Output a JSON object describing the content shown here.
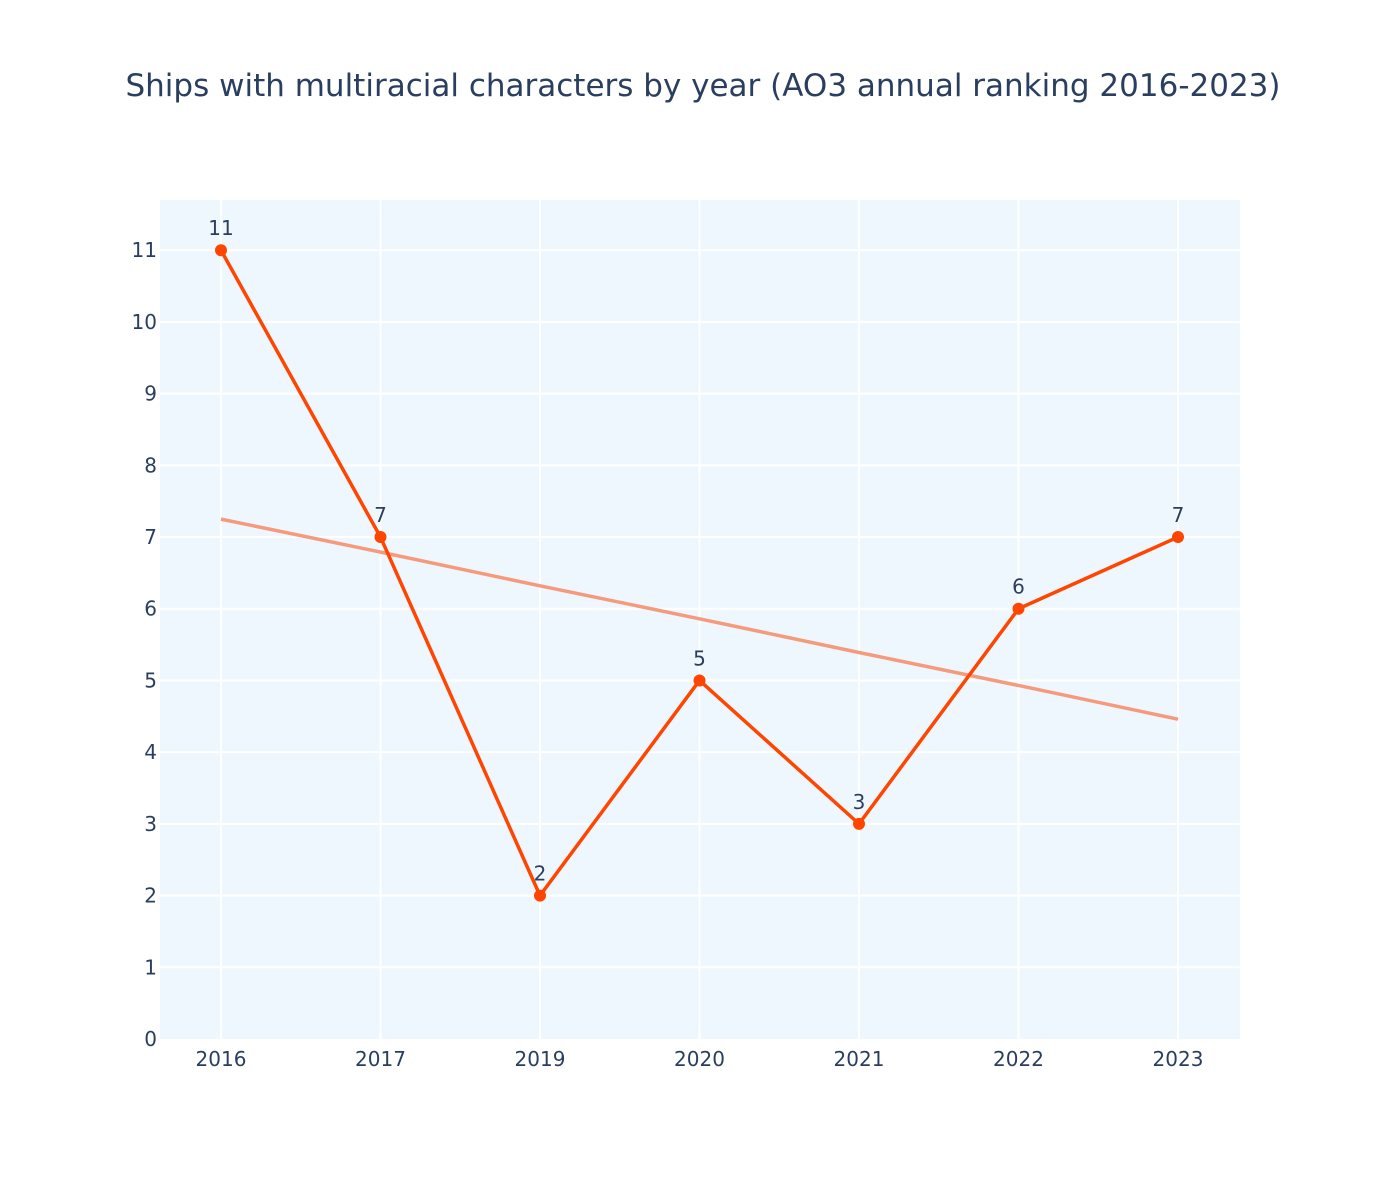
{
  "chart_data": {
    "type": "line",
    "title": "Ships with multiracial characters by year (AO3 annual ranking 2016-2023)",
    "categories": [
      "2016",
      "2017",
      "2019",
      "2020",
      "2021",
      "2022",
      "2023"
    ],
    "series": [
      {
        "values": [
          11,
          7,
          2,
          5,
          3,
          6,
          7
        ],
        "color": "#ff4500",
        "markers": true,
        "data_labels": true
      },
      {
        "kind": "trendline",
        "values": [
          7.25,
          6.79,
          6.32,
          5.86,
          5.39,
          4.93,
          4.46
        ],
        "color": "#f59a7c"
      }
    ],
    "ylim": [
      0,
      11.7
    ],
    "yticks": [
      0,
      1,
      2,
      3,
      4,
      5,
      6,
      7,
      8,
      9,
      10,
      11
    ],
    "grid": true,
    "plot_bgcolor": "#eef7fd",
    "legend": "none"
  }
}
